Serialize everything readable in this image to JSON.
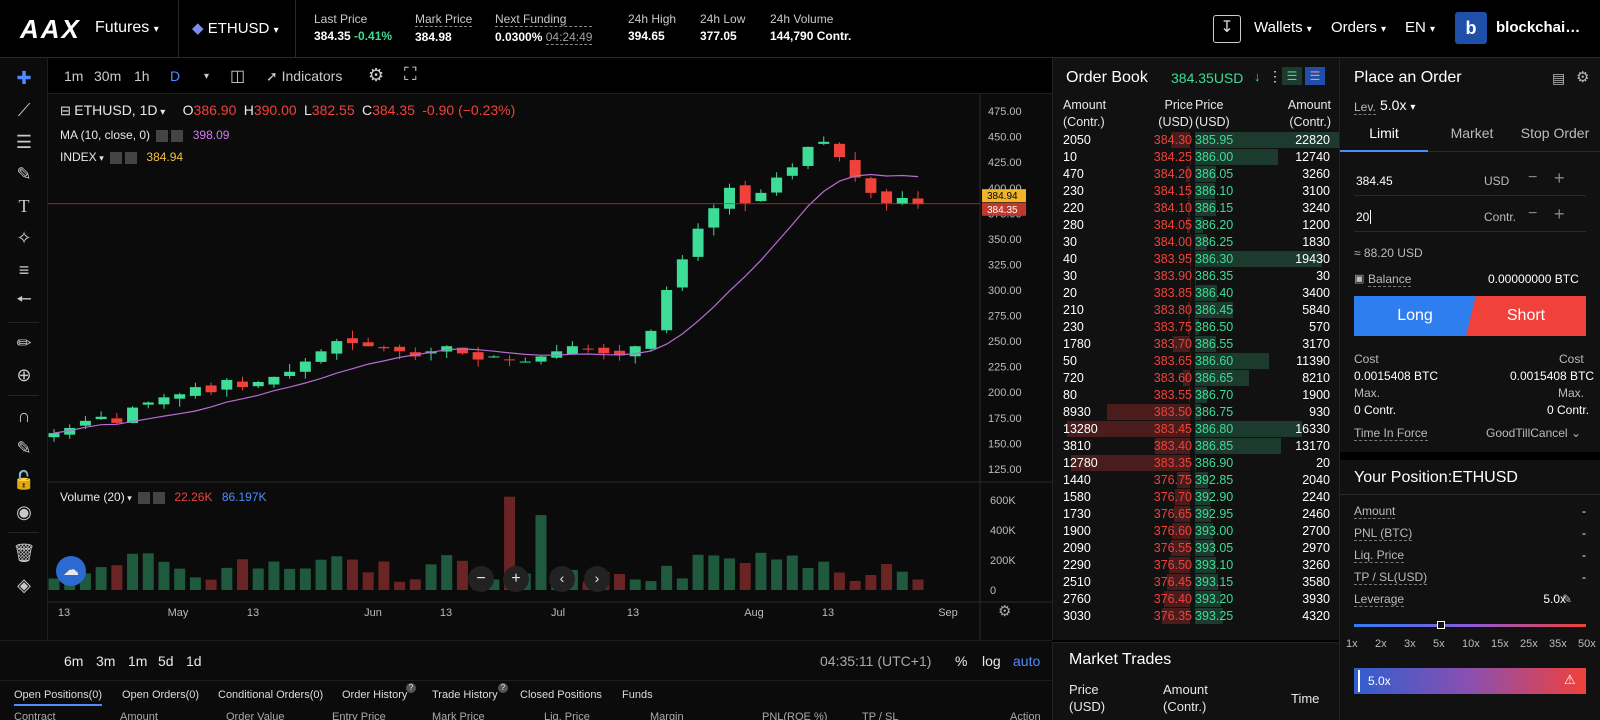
{
  "header": {
    "logo": "AAX",
    "product_menu": "Futures",
    "symbol_menu": "ETHUSD",
    "stats": [
      {
        "label": "Last Price",
        "value": "384.35",
        "change": "-0.41%"
      },
      {
        "label": "Mark Price",
        "value": "384.98"
      },
      {
        "label": "Next Funding",
        "value": "0.0300%",
        "countdown": "04:24:49"
      },
      {
        "label": "24h High",
        "value": "394.65"
      },
      {
        "label": "24h Low",
        "value": "377.05"
      },
      {
        "label": "24h Volume",
        "value": "144,790 Contr."
      }
    ],
    "wallets": "Wallets",
    "orders": "Orders",
    "lang": "EN",
    "avatar_letter": "b",
    "account": "blockchai…"
  },
  "chart_toolbar": {
    "intervals": [
      "1m",
      "30m",
      "1h",
      "D"
    ],
    "indicators": "Indicators"
  },
  "chart_legend": {
    "symbol": "ETHUSD, 1D",
    "o_label": "O",
    "o": "386.90",
    "h_label": "H",
    "h": "390.00",
    "l_label": "L",
    "l": "382.55",
    "c_label": "C",
    "c": "384.35",
    "change": "-0.90 (−0.23%)",
    "ma_label": "MA (10, close, 0)",
    "ma_value": "398.09",
    "index_label": "INDEX",
    "index_value": "384.94",
    "volume_label": "Volume (20)",
    "volume_a": "22.26K",
    "volume_b": "86.197K"
  },
  "chart_data": {
    "type": "candlestick",
    "price_axis_ticks": [
      "475.00",
      "450.00",
      "425.00",
      "400.00",
      "375.00",
      "350.00",
      "325.00",
      "300.00",
      "275.00",
      "250.00",
      "225.00",
      "200.00",
      "175.00",
      "150.00",
      "125.00"
    ],
    "price_ylim": [
      120,
      480
    ],
    "volume_axis_ticks": [
      "600K",
      "400K",
      "200K",
      "0"
    ],
    "x_ticks": [
      "13",
      "May",
      "13",
      "Jun",
      "13",
      "Jul",
      "13",
      "Aug",
      "13",
      "Sep"
    ],
    "tag_index": "384.94",
    "tag_last": "384.35",
    "closes_approx": [
      160,
      165,
      172,
      176,
      170,
      185,
      190,
      195,
      198,
      205,
      200,
      212,
      205,
      210,
      215,
      220,
      230,
      240,
      250,
      248,
      245,
      243,
      240,
      235,
      240,
      245,
      238,
      232,
      235,
      232,
      230,
      235,
      240,
      245,
      242,
      238,
      236,
      245,
      260,
      300,
      330,
      360,
      380,
      400,
      385,
      395,
      410,
      420,
      440,
      445,
      430,
      410,
      395,
      385,
      390,
      384
    ]
  },
  "orderbook": {
    "title": "Order Book",
    "price": "384.35USD",
    "headers": {
      "amount": "Amount\n(Contr.)",
      "price_bid": "Price\n(USD)",
      "price_ask": "Price\n(USD)",
      "amount_ask": "Amount\n(Contr.)"
    },
    "rows": [
      [
        "2050",
        "384.30",
        "385.95",
        "22820"
      ],
      [
        "10",
        "384.25",
        "386.00",
        "12740"
      ],
      [
        "470",
        "384.20",
        "386.05",
        "3260"
      ],
      [
        "230",
        "384.15",
        "386.10",
        "3100"
      ],
      [
        "220",
        "384.10",
        "386.15",
        "3240"
      ],
      [
        "280",
        "384.05",
        "386.20",
        "1200"
      ],
      [
        "30",
        "384.00",
        "386.25",
        "1830"
      ],
      [
        "40",
        "383.95",
        "386.30",
        "19430"
      ],
      [
        "30",
        "383.90",
        "386.35",
        "30"
      ],
      [
        "20",
        "383.85",
        "386.40",
        "3400"
      ],
      [
        "210",
        "383.80",
        "386.45",
        "5840"
      ],
      [
        "230",
        "383.75",
        "386.50",
        "570"
      ],
      [
        "1780",
        "383.70",
        "386.55",
        "3170"
      ],
      [
        "50",
        "383.65",
        "386.60",
        "11390"
      ],
      [
        "720",
        "383.60",
        "386.65",
        "8210"
      ],
      [
        "80",
        "383.55",
        "386.70",
        "1900"
      ],
      [
        "8930",
        "383.50",
        "386.75",
        "930"
      ],
      [
        "13280",
        "383.45",
        "386.80",
        "16330"
      ],
      [
        "3810",
        "383.40",
        "386.85",
        "13170"
      ],
      [
        "12780",
        "383.35",
        "386.90",
        "20"
      ],
      [
        "1440",
        "376.75",
        "392.85",
        "2040"
      ],
      [
        "1580",
        "376.70",
        "392.90",
        "2240"
      ],
      [
        "1730",
        "376.65",
        "392.95",
        "2460"
      ],
      [
        "1900",
        "376.60",
        "393.00",
        "2700"
      ],
      [
        "2090",
        "376.55",
        "393.05",
        "2970"
      ],
      [
        "2290",
        "376.50",
        "393.10",
        "3260"
      ],
      [
        "2510",
        "376.45",
        "393.15",
        "3580"
      ],
      [
        "2760",
        "376.40",
        "393.20",
        "3930"
      ],
      [
        "3030",
        "376.35",
        "393.25",
        "4320"
      ]
    ]
  },
  "market_trades": {
    "title": "Market Trades",
    "h_price": "Price\n(USD)",
    "h_amount": "Amount\n(Contr.)",
    "h_time": "Time"
  },
  "order_panel": {
    "title": "Place an Order",
    "lev_label": "Lev.",
    "lev_value": "5.0x",
    "tabs": [
      "Limit",
      "Market",
      "Stop Order"
    ],
    "price_value": "384.45",
    "price_unit": "USD",
    "qty_value": "20",
    "qty_unit": "Contr.",
    "approx": "≈ 88.20  USD",
    "balance_label": "Balance",
    "balance_value": "0.00000000 BTC",
    "long": "Long",
    "short": "Short",
    "cost_label": "Cost",
    "cost_long": "0.0015408 BTC",
    "cost_short": "0.0015408 BTC",
    "max_label": "Max.",
    "max_long": "0 Contr.",
    "max_short": "0 Contr.",
    "tif_label": "Time In Force",
    "tif_value": "GoodTillCancel",
    "position_title": "Your Position:ETHUSD",
    "pos_rows": [
      {
        "label": "Amount",
        "value": "-"
      },
      {
        "label": "PNL (BTC)",
        "value": "-"
      },
      {
        "label": "Liq. Price",
        "value": "-"
      },
      {
        "label": "TP / SL(USD)",
        "value": "-"
      },
      {
        "label": "Leverage",
        "value": "5.0x"
      }
    ],
    "lev_ticks": [
      "1x",
      "2x",
      "3x",
      "5x",
      "10x",
      "15x",
      "25x",
      "35x",
      "50x"
    ],
    "lev_slider_fraction": 0.375,
    "lev_bar_value": "5.0x"
  },
  "bottom": {
    "ranges": [
      "6m",
      "3m",
      "1m",
      "5d",
      "1d"
    ],
    "clock": "04:35:11 (UTC+1)",
    "pct": "%",
    "log": "log",
    "auto": "auto",
    "tabs": [
      "Open Positions(0)",
      "Open Orders(0)",
      "Conditional Orders(0)",
      "Order History",
      "Trade History",
      "Closed Positions",
      "Funds"
    ],
    "columns": [
      "Contract",
      "Amount",
      "Order Value",
      "Entry Price",
      "Mark Price",
      "Liq. Price",
      "Margin",
      "PNL(ROE %)",
      "TP / SL",
      "Action"
    ]
  }
}
